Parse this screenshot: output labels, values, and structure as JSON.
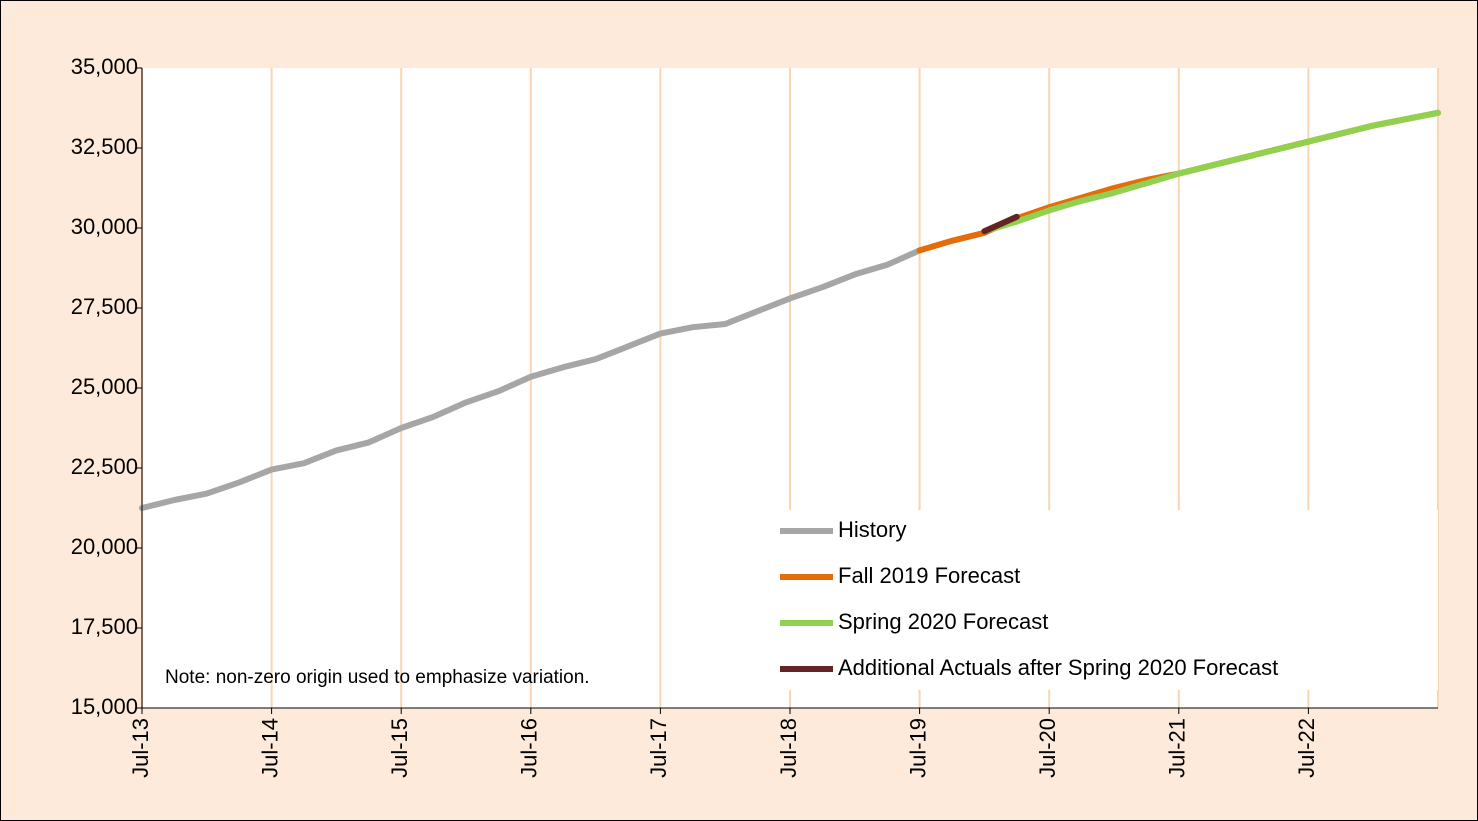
{
  "chart_data": {
    "type": "line",
    "categories": [
      "Jul-13",
      null,
      null,
      null,
      "Jul-14",
      null,
      null,
      null,
      "Jul-15",
      null,
      null,
      null,
      "Jul-16",
      null,
      null,
      null,
      "Jul-17",
      null,
      null,
      null,
      "Jul-18",
      null,
      null,
      null,
      "Jul-19",
      null,
      null,
      null,
      "Jul-20",
      null,
      null,
      null,
      "Jul-21",
      null,
      null,
      null,
      "Jul-22",
      null,
      null,
      null,
      null
    ],
    "series": [
      {
        "name": "History",
        "color": "#a6a6a6",
        "values": [
          21250,
          21500,
          21700,
          22050,
          22450,
          22650,
          23050,
          23300,
          23750,
          24100,
          24550,
          24900,
          25350,
          25650,
          25900,
          26300,
          26700,
          26900,
          27000,
          27400,
          27800,
          28150,
          28550,
          28850,
          29300,
          null,
          null,
          null,
          null,
          null,
          null,
          null,
          null,
          null,
          null,
          null,
          null,
          null,
          null,
          null,
          null
        ]
      },
      {
        "name": "Fall 2019 Forecast",
        "color": "#e46c0a",
        "values": [
          null,
          null,
          null,
          null,
          null,
          null,
          null,
          null,
          null,
          null,
          null,
          null,
          null,
          null,
          null,
          null,
          null,
          null,
          null,
          null,
          null,
          null,
          null,
          null,
          29300,
          29600,
          29850,
          30300,
          30650,
          30950,
          31250,
          31500,
          31700,
          31950,
          32200,
          32450,
          32700,
          32950,
          33200,
          33400,
          33600
        ]
      },
      {
        "name": "Spring 2020 Forecast",
        "color": "#92d050",
        "values": [
          null,
          null,
          null,
          null,
          null,
          null,
          null,
          null,
          null,
          null,
          null,
          null,
          null,
          null,
          null,
          null,
          null,
          null,
          null,
          null,
          null,
          null,
          null,
          null,
          null,
          null,
          29900,
          30200,
          30550,
          30850,
          31100,
          31400,
          31700,
          31950,
          32200,
          32450,
          32700,
          32950,
          33200,
          33400,
          33600
        ]
      },
      {
        "name": "Additional Actuals after Spring 2020 Forecast",
        "color": "#632523",
        "values": [
          null,
          null,
          null,
          null,
          null,
          null,
          null,
          null,
          null,
          null,
          null,
          null,
          null,
          null,
          null,
          null,
          null,
          null,
          null,
          null,
          null,
          null,
          null,
          null,
          null,
          null,
          29900,
          30350,
          null,
          null,
          null,
          null,
          null,
          null,
          null,
          null,
          null,
          null,
          null,
          null,
          null
        ]
      }
    ],
    "ylim": [
      15000,
      35000
    ],
    "yticks": [
      {
        "value": 15000,
        "label": "15,000"
      },
      {
        "value": 17500,
        "label": "17,500"
      },
      {
        "value": 20000,
        "label": "20,000"
      },
      {
        "value": 22500,
        "label": "22,500"
      },
      {
        "value": 25000,
        "label": "25,000"
      },
      {
        "value": 27500,
        "label": "27,500"
      },
      {
        "value": 30000,
        "label": "30,000"
      },
      {
        "value": 32500,
        "label": "32,500"
      },
      {
        "value": 35000,
        "label": "35,000"
      }
    ],
    "annotation": "Note: non-zero origin used to emphasize variation.",
    "grid": "x"
  }
}
